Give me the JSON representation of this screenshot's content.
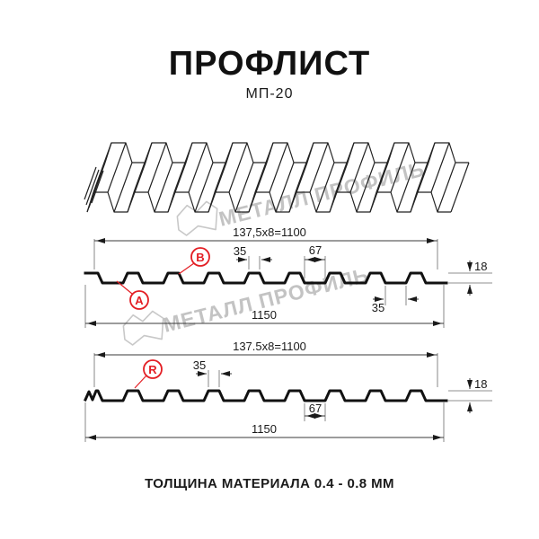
{
  "header": {
    "title": "ПРОФЛИСТ",
    "subtitle": "МП-20"
  },
  "watermark": {
    "text": "МЕТАЛЛ ПРОФИЛЬ"
  },
  "section_top": {
    "working_width": "137,5x8=1100",
    "overall_width": "1150",
    "rib_top_width": "35",
    "valley_width": "67",
    "profile_height": "18",
    "bottom_flat_width": "35",
    "label_a": "A",
    "label_b": "B"
  },
  "section_bottom": {
    "working_width": "137.5x8=1100",
    "overall_width": "1150",
    "rib_top_width": "35",
    "valley_width": "67",
    "profile_height": "18",
    "label_r": "R"
  },
  "footer": {
    "thickness_note": "ТОЛЩИНА МАТЕРИАЛА 0.4 - 0.8 ММ"
  },
  "colors": {
    "accent": "#e31e24",
    "line": "#1a1a1a",
    "watermark": "#c6c6c6"
  }
}
